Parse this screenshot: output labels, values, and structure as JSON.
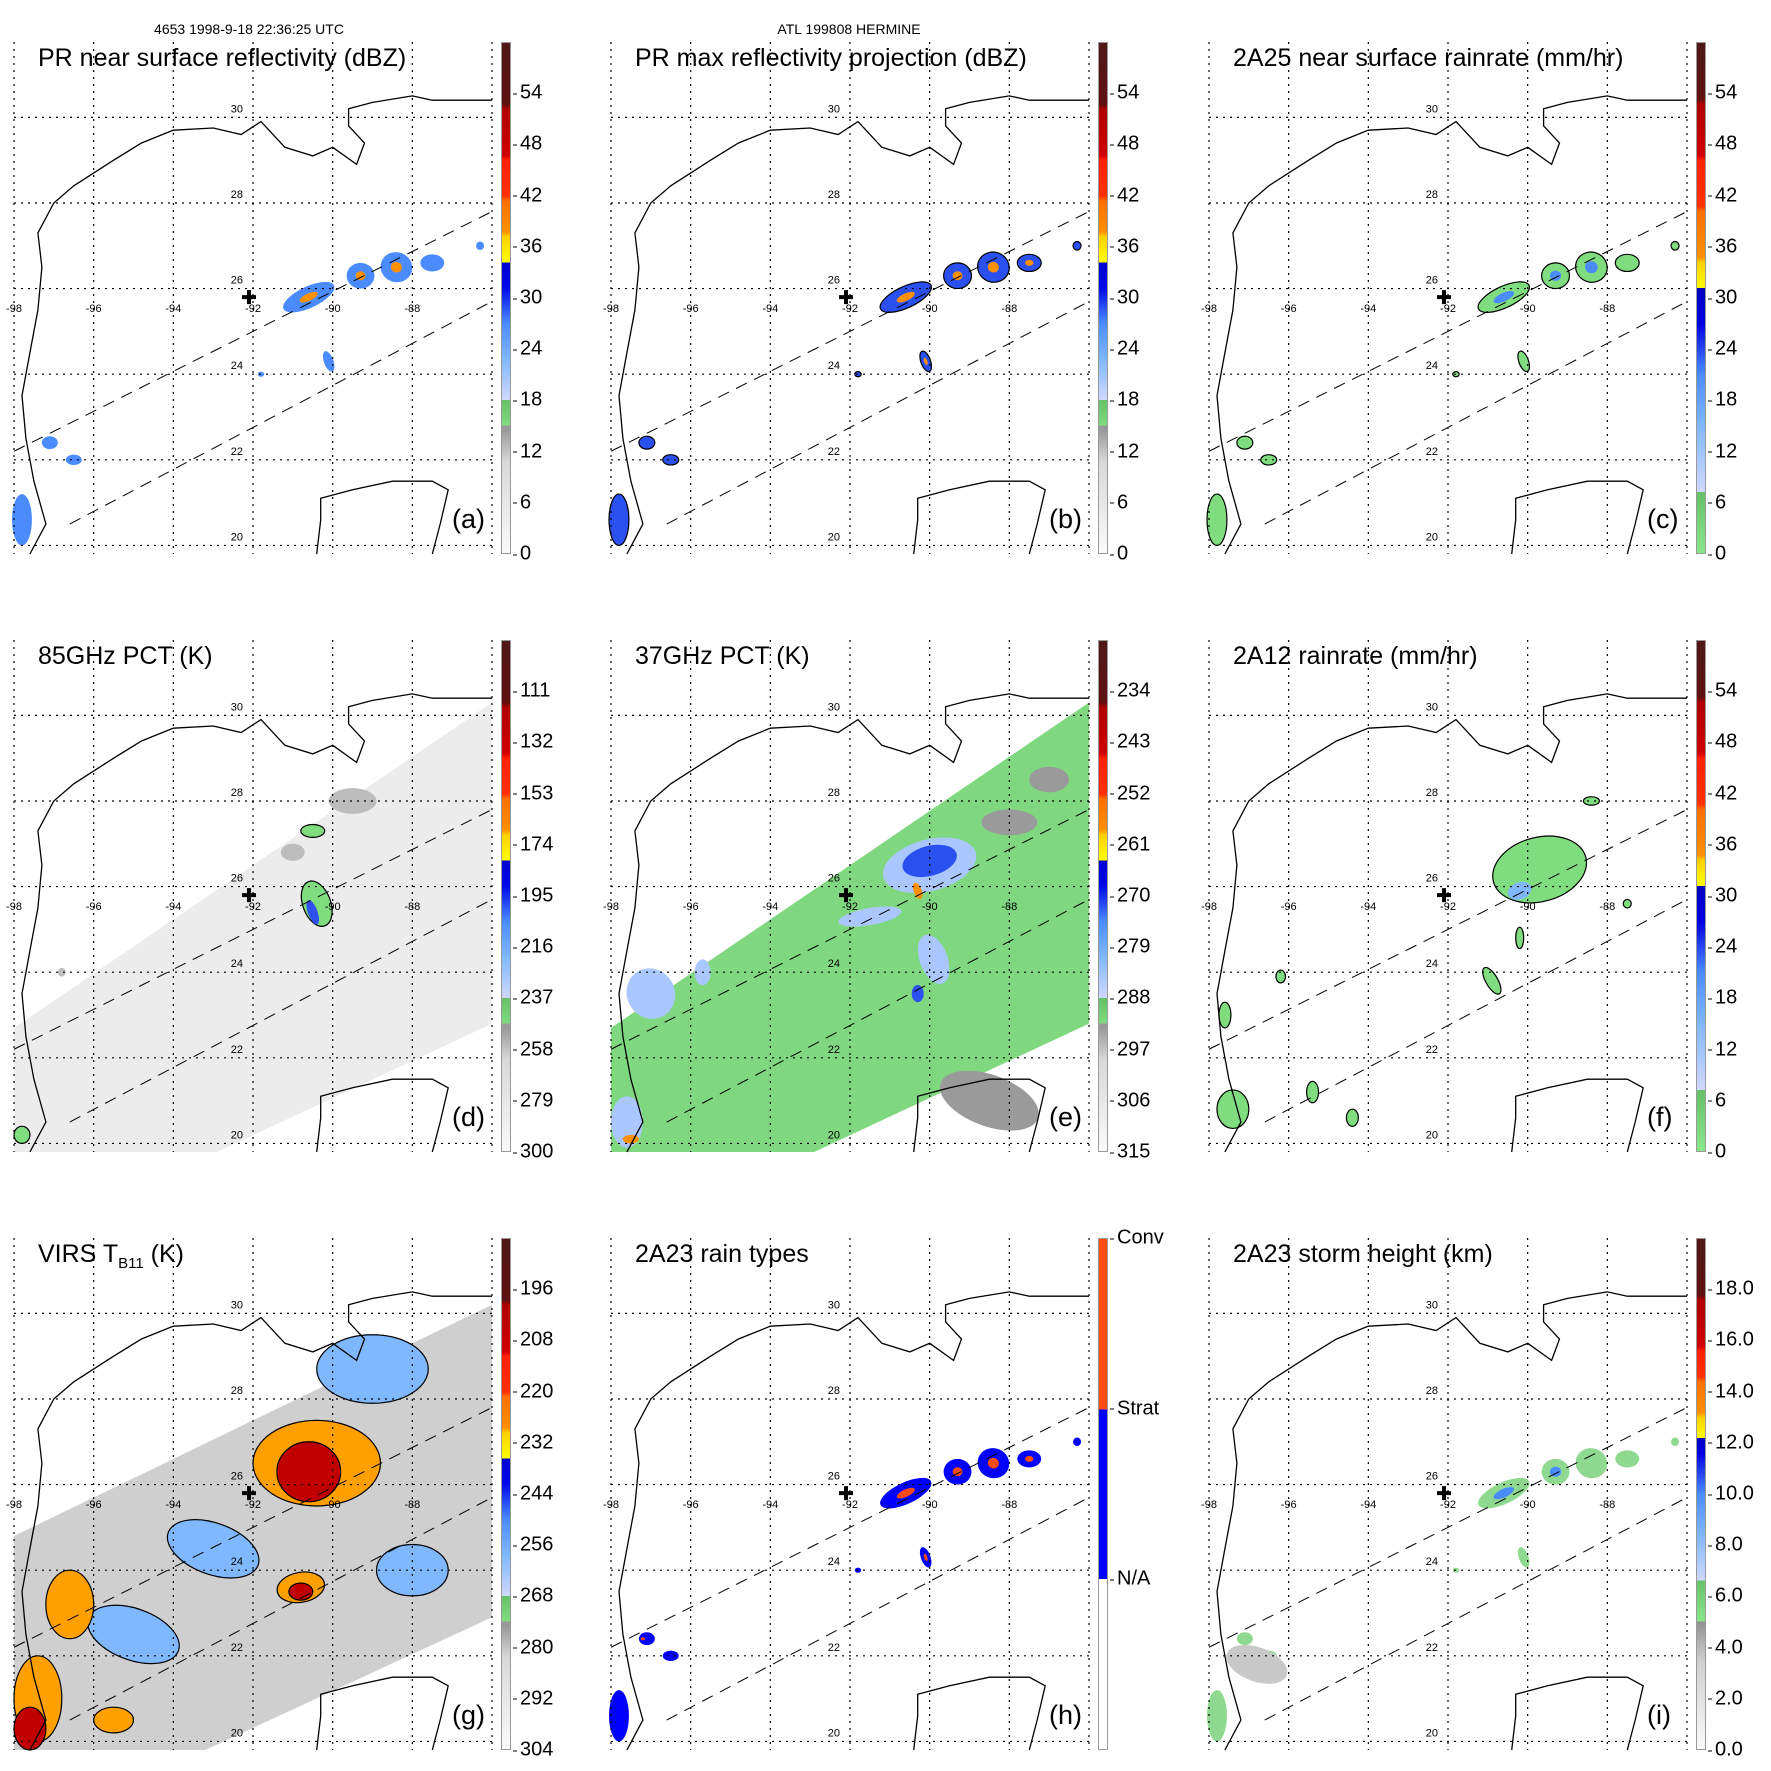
{
  "header": {
    "orbit_time": "4653 1998-9-18 22:36:25 UTC",
    "storm": "ATL 199808 HERMINE"
  },
  "grid": {
    "lon_labels": [
      "-98",
      "-96",
      "-94",
      "-92",
      "-90",
      "-88"
    ],
    "lat_labels": [
      "30",
      "28",
      "26",
      "24",
      "22",
      "20"
    ]
  },
  "colors": {
    "convective": "#ff4a10",
    "stratiform": "#0000ff",
    "swath_green": "#7fd87f"
  },
  "chart_data": [
    {
      "id": "a",
      "type": "heatmap",
      "title": "PR near surface reflectivity (dBZ)",
      "letter": "(a)",
      "colorbar": [
        "0",
        "6",
        "12",
        "18",
        "24",
        "30",
        "36",
        "42",
        "48",
        "54"
      ],
      "range": [
        0,
        60
      ]
    },
    {
      "id": "b",
      "type": "heatmap",
      "title": "PR max reflectivity projection (dBZ)",
      "letter": "(b)",
      "colorbar": [
        "0",
        "6",
        "12",
        "18",
        "24",
        "30",
        "36",
        "42",
        "48",
        "54"
      ],
      "range": [
        0,
        60
      ]
    },
    {
      "id": "c",
      "type": "heatmap",
      "title": "2A25 near surface rainrate (mm/hr)",
      "letter": "(c)",
      "colorbar": [
        "0",
        "6",
        "12",
        "18",
        "24",
        "30",
        "36",
        "42",
        "48",
        "54"
      ],
      "range": [
        0,
        60
      ]
    },
    {
      "id": "d",
      "type": "heatmap",
      "title": "85GHz PCT (K)",
      "letter": "(d)",
      "colorbar": [
        "300",
        "279",
        "258",
        "237",
        "216",
        "195",
        "174",
        "153",
        "132",
        "111"
      ],
      "range": [
        300,
        90
      ]
    },
    {
      "id": "e",
      "type": "heatmap",
      "title": "37GHz PCT (K)",
      "letter": "(e)",
      "colorbar": [
        "315",
        "306",
        "297",
        "288",
        "279",
        "270",
        "261",
        "252",
        "243",
        "234"
      ],
      "range": [
        315,
        225
      ]
    },
    {
      "id": "f",
      "type": "heatmap",
      "title": "2A12 rainrate (mm/hr)",
      "letter": "(f)",
      "colorbar": [
        "0",
        "6",
        "12",
        "18",
        "24",
        "30",
        "36",
        "42",
        "48",
        "54"
      ],
      "range": [
        0,
        60
      ]
    },
    {
      "id": "g",
      "type": "heatmap",
      "title": "VIRS T",
      "title_sub": "B11",
      "title_end": " (K)",
      "letter": "(g)",
      "colorbar": [
        "304",
        "292",
        "280",
        "268",
        "256",
        "244",
        "232",
        "220",
        "208",
        "196"
      ],
      "range": [
        304,
        184
      ]
    },
    {
      "id": "h",
      "type": "heatmap",
      "title": "2A23 rain types",
      "letter": "(h)",
      "colorbar": [
        "N/A",
        "Strat",
        "Conv"
      ],
      "range": [
        "N/A",
        "Conv"
      ]
    },
    {
      "id": "i",
      "type": "heatmap",
      "title": "2A23 storm height (km)",
      "letter": "(i)",
      "colorbar": [
        "0.0",
        "2.0",
        "4.0",
        "6.0",
        "8.0",
        "10.0",
        "12.0",
        "14.0",
        "16.0",
        "18.0"
      ],
      "range": [
        0,
        20
      ]
    }
  ]
}
